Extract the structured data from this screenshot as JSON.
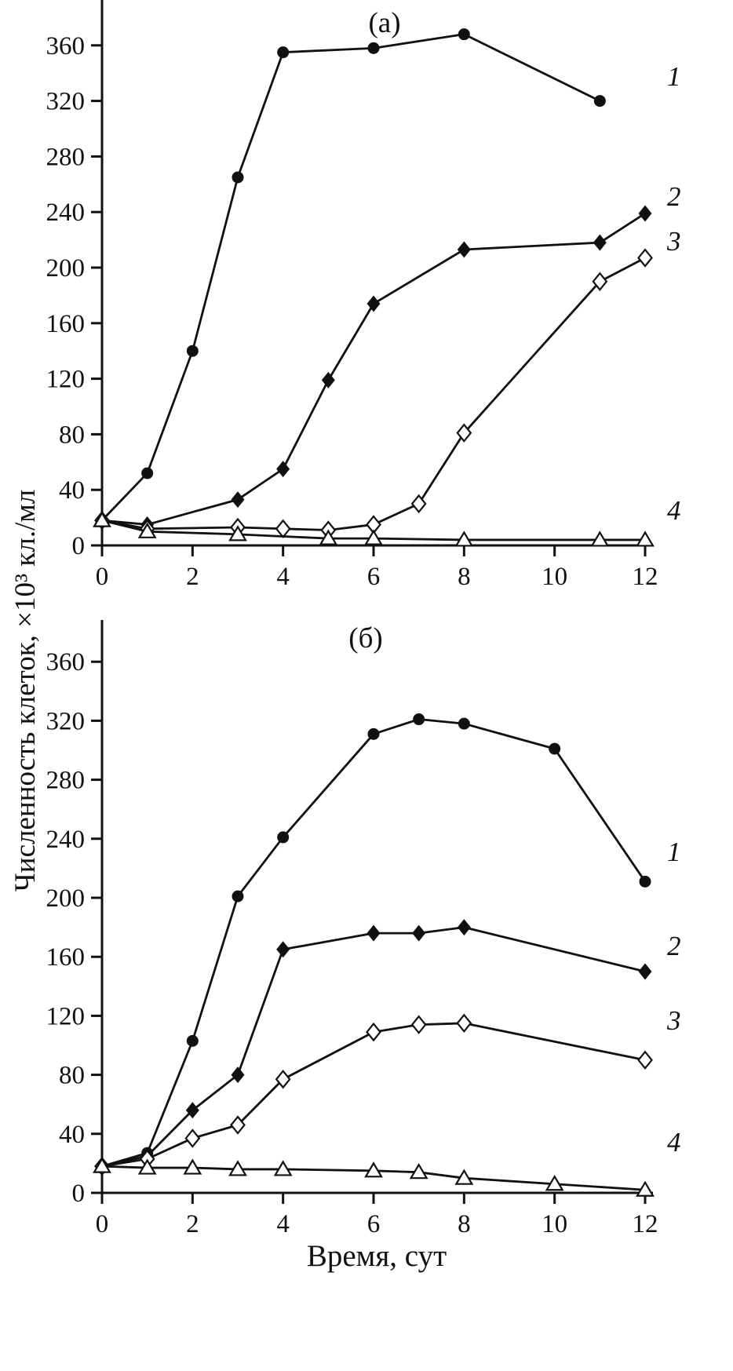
{
  "figure": {
    "ylabel": "Численность клеток, ×10³ кл./мл",
    "xlabel": "Время, сут"
  },
  "chart_data": [
    {
      "type": "line",
      "title": "(а)",
      "xlabel": "Время, сут",
      "ylabel": "Численность клеток, ×10³ кл./мл",
      "xlim": [
        0,
        12
      ],
      "ylim": [
        0,
        380
      ],
      "xticks": [
        0,
        2,
        4,
        6,
        8,
        10,
        12
      ],
      "yticks": [
        0,
        40,
        80,
        120,
        160,
        200,
        240,
        280,
        320,
        360
      ],
      "grid": false,
      "legend_position": "right-inline",
      "series": [
        {
          "name": "1",
          "marker": "filled-circle",
          "x": [
            0,
            1,
            2,
            3,
            4,
            6,
            8,
            11
          ],
          "y": [
            18,
            52,
            140,
            265,
            355,
            358,
            368,
            320
          ]
        },
        {
          "name": "2",
          "marker": "filled-diamond",
          "x": [
            0,
            1,
            3,
            4,
            5,
            6,
            8,
            11,
            12
          ],
          "y": [
            18,
            15,
            33,
            55,
            119,
            174,
            213,
            218,
            239
          ]
        },
        {
          "name": "3",
          "marker": "open-diamond",
          "x": [
            0,
            1,
            3,
            4,
            5,
            6,
            7,
            8,
            11,
            12
          ],
          "y": [
            18,
            12,
            13,
            12,
            11,
            15,
            30,
            81,
            190,
            207
          ]
        },
        {
          "name": "4",
          "marker": "open-triangle",
          "x": [
            0,
            1,
            3,
            5,
            6,
            8,
            11,
            12
          ],
          "y": [
            18,
            10,
            8,
            5,
            5,
            4,
            4,
            4
          ]
        }
      ]
    },
    {
      "type": "line",
      "title": "(б)",
      "xlabel": "Время, сут",
      "ylabel": "Численность клеток, ×10³ кл./мл",
      "xlim": [
        0,
        12
      ],
      "ylim": [
        0,
        380
      ],
      "xticks": [
        0,
        2,
        4,
        6,
        8,
        10,
        12
      ],
      "yticks": [
        0,
        40,
        80,
        120,
        160,
        200,
        240,
        280,
        320,
        360
      ],
      "grid": false,
      "legend_position": "right-inline",
      "series": [
        {
          "name": "1",
          "marker": "filled-circle",
          "x": [
            0,
            1,
            2,
            3,
            4,
            6,
            7,
            8,
            10,
            12
          ],
          "y": [
            18,
            27,
            103,
            201,
            241,
            311,
            321,
            318,
            301,
            211
          ]
        },
        {
          "name": "2",
          "marker": "filled-diamond",
          "x": [
            0,
            1,
            2,
            3,
            4,
            6,
            7,
            8,
            12
          ],
          "y": [
            18,
            25,
            56,
            80,
            165,
            176,
            176,
            180,
            150
          ]
        },
        {
          "name": "3",
          "marker": "open-diamond",
          "x": [
            0,
            1,
            2,
            3,
            4,
            6,
            7,
            8,
            12
          ],
          "y": [
            18,
            23,
            37,
            46,
            77,
            109,
            114,
            115,
            90
          ]
        },
        {
          "name": "4",
          "marker": "open-triangle",
          "x": [
            0,
            1,
            2,
            3,
            4,
            6,
            7,
            8,
            10,
            12
          ],
          "y": [
            18,
            17,
            17,
            16,
            16,
            15,
            14,
            10,
            6,
            2
          ]
        }
      ]
    }
  ],
  "colors": {
    "line": "#111111",
    "background": "#ffffff"
  }
}
